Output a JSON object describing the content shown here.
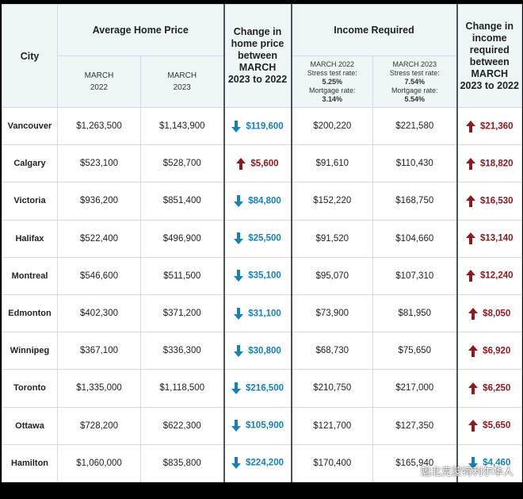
{
  "header": {
    "city": "City",
    "avg_home_price": {
      "title": "Average Home Price",
      "columns": [
        "MARCH\n2022",
        "MARCH\n2023"
      ]
    },
    "change_home_price": "Change in\nhome price\nbetween\nMARCH\n2023 to 2022",
    "income_required": {
      "title": "Income Required",
      "columns": [
        {
          "date": "MARCH 2022",
          "stress_label": "Stress test rate:",
          "stress_rate": "5.25%",
          "mortgage_label": "Mortgage rate:",
          "mortgage_rate": "3.14%"
        },
        {
          "date": "MARCH 2023",
          "stress_label": "Stress test rate:",
          "stress_rate": "7.54%",
          "mortgage_label": "Mortgage rate:",
          "mortgage_rate": "5.54%"
        }
      ]
    },
    "change_income": "Change in\nincome\nrequired\nbetween\nMARCH\n2023 to 2022"
  },
  "table": {
    "rows": [
      [
        "Vancouver",
        "$1,263,500",
        "$1,143,900",
        "$119,600",
        "$200,220",
        "$221,580",
        "$21,360"
      ],
      [
        "Calgary",
        "$523,100",
        "$528,700",
        "$5,600",
        "$91,610",
        "$110,430",
        "$18,820"
      ],
      [
        "Victoria",
        "$936,200",
        "$851,400",
        "$84,800",
        "$152,220",
        "$168,750",
        "$16,530"
      ],
      [
        "Halifax",
        "$522,400",
        "$496,900",
        "$25,500",
        "$91,520",
        "$104,660",
        "$13,140"
      ],
      [
        "Montreal",
        "$546,600",
        "$511,500",
        "$35,100",
        "$95,070",
        "$107,310",
        "$12,240"
      ],
      [
        "Edmonton",
        "$402,300",
        "$371,200",
        "$31,100",
        "$73,900",
        "$81,950",
        "$8,050"
      ],
      [
        "Winnipeg",
        "$367,100",
        "$336,300",
        "$30,800",
        "$68,730",
        "$75,650",
        "$6,920"
      ],
      [
        "Toronto",
        "$1,335,000",
        "$1,118,500",
        "$216,500",
        "$210,750",
        "$217,000",
        "$6,250"
      ],
      [
        "Ottawa",
        "$728,200",
        "$622,300",
        "$105,900",
        "$121,700",
        "$127,350",
        "$5,650"
      ],
      [
        "Hamilton",
        "$1,060,000",
        "$835,800",
        "$224,200",
        "$170,400",
        "$165,940",
        "$4,460"
      ]
    ]
  },
  "watermark": "魁北克蒙特利尔华人"
}
